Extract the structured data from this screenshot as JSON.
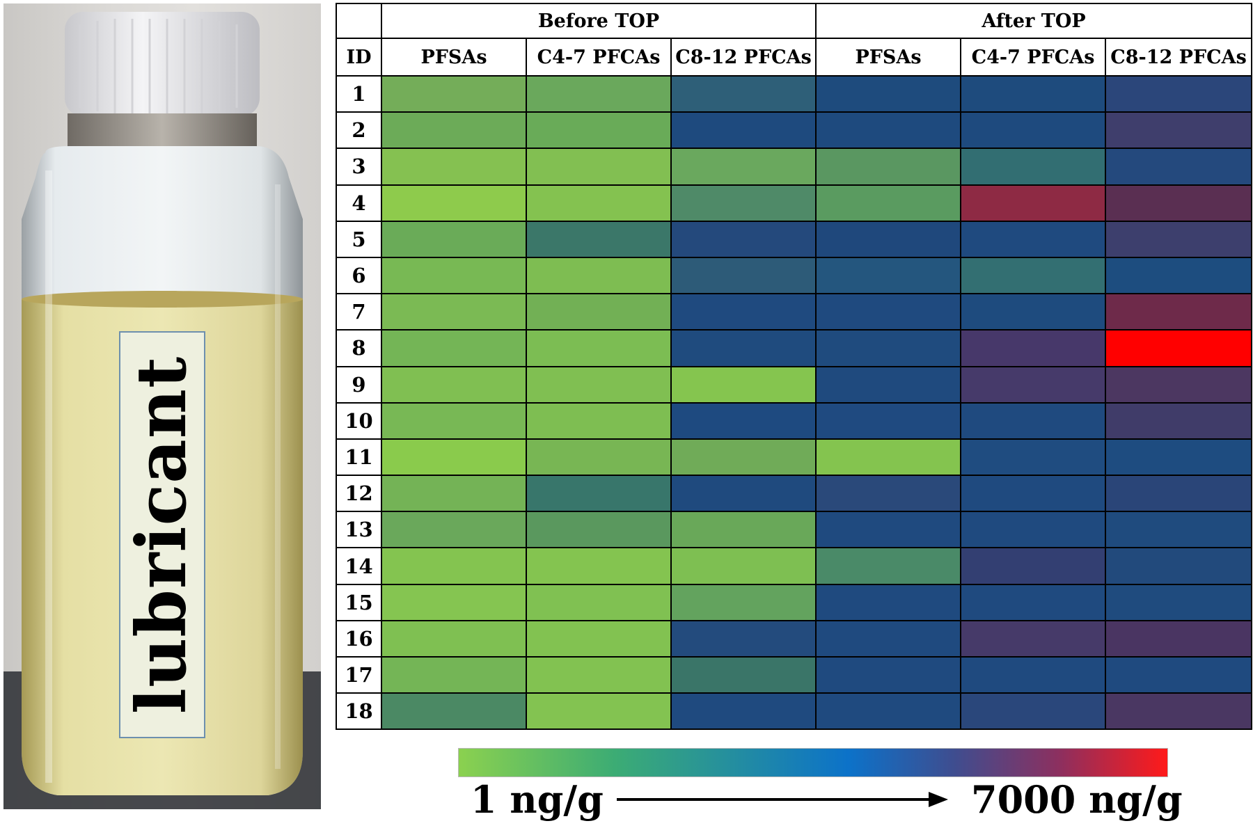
{
  "photo": {
    "label_text": "lubricant"
  },
  "chart_data": {
    "type": "heatmap",
    "title": "",
    "row_header": "ID",
    "column_groups": [
      {
        "name": "Before TOP",
        "columns": [
          "PFSAs",
          "C4-7 PFCAs",
          "C8-12 PFCAs"
        ]
      },
      {
        "name": "After TOP",
        "columns": [
          "PFSAs",
          "C4-7 PFCAs",
          "C8-12 PFCAs"
        ]
      }
    ],
    "rows": [
      "1",
      "2",
      "3",
      "4",
      "5",
      "6",
      "7",
      "8",
      "9",
      "10",
      "11",
      "12",
      "13",
      "14",
      "15",
      "16",
      "17",
      "18"
    ],
    "colorscale": {
      "min_label": "1 ng/g",
      "max_label": "7000 ng/g",
      "min": 1,
      "max": 7000,
      "stops": [
        "#8bd14f",
        "#3cac74",
        "#1f88a8",
        "#0c72c9",
        "#3f4d8f",
        "#8e2f5e",
        "#ff1a1a"
      ]
    },
    "cell_colors": [
      [
        "#74ad59",
        "#6aa85c",
        "#2e5f78",
        "#1e4b7d",
        "#1e4b7d",
        "#2b467a"
      ],
      [
        "#6cab58",
        "#69ab58",
        "#1e4a7e",
        "#1e4a7e",
        "#1e4a7e",
        "#3f3e6c"
      ],
      [
        "#85c151",
        "#82bf52",
        "#6aa85e",
        "#5a9761",
        "#326e72",
        "#24497d"
      ],
      [
        "#8ecb4c",
        "#84c250",
        "#4f8a68",
        "#5a9b60",
        "#8e2a44",
        "#5a2f52"
      ],
      [
        "#6aab58",
        "#3b7769",
        "#24497c",
        "#1f487c",
        "#1f4a7f",
        "#3d3f6d"
      ],
      [
        "#78b954",
        "#7ebd52",
        "#2d5b78",
        "#24567e",
        "#336f72",
        "#1d4d7f"
      ],
      [
        "#7bba54",
        "#72b055",
        "#1f4a7f",
        "#1f4a7f",
        "#1e4b7e",
        "#6e2a4a"
      ],
      [
        "#74b556",
        "#7cbd53",
        "#1f4b7e",
        "#1f4b7e",
        "#47386a",
        "#ff0000"
      ],
      [
        "#80bf52",
        "#80bf52",
        "#85c54f",
        "#1f4a7e",
        "#463a6a",
        "#4c3761"
      ],
      [
        "#78b855",
        "#7ebe52",
        "#1e4a80",
        "#1f4a80",
        "#1f4a7f",
        "#403c69"
      ],
      [
        "#8acb4c",
        "#78b654",
        "#70ab58",
        "#84c44f",
        "#1f4c80",
        "#1e4c80"
      ],
      [
        "#74b356",
        "#38766b",
        "#1f4a7e",
        "#2a497a",
        "#1f4a7f",
        "#2a4578"
      ],
      [
        "#6aa85b",
        "#5a985e",
        "#69a859",
        "#1f4a7f",
        "#1f4a7f",
        "#1f4b7e"
      ],
      [
        "#84c450",
        "#84c450",
        "#7ebf52",
        "#4a8a68",
        "#333f72",
        "#224a7c"
      ],
      [
        "#85c551",
        "#80c152",
        "#63a35e",
        "#1f4a7f",
        "#1f4a7f",
        "#1f4b7e"
      ],
      [
        "#7fc052",
        "#82c251",
        "#234b7d",
        "#1f4a7f",
        "#463a69",
        "#4a3562"
      ],
      [
        "#74b556",
        "#82c251",
        "#3a7568",
        "#1f4a7f",
        "#1f4a7f",
        "#1f4a7f"
      ],
      [
        "#4b8964",
        "#83c351",
        "#1f4a7f",
        "#1f4a7f",
        "#2a477b",
        "#4a3762"
      ]
    ]
  }
}
